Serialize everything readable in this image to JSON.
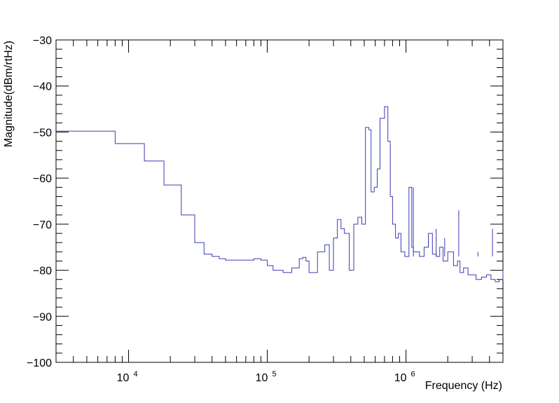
{
  "chart_data": {
    "type": "line",
    "title": "",
    "xlabel": "Frequency (Hz)",
    "ylabel": "Magnitude(dBm/rtHz)",
    "x_scale": "log",
    "xlim": [
      3000,
      5000000
    ],
    "ylim": [
      -100,
      -30
    ],
    "grid": false,
    "legend": "none",
    "line_color": "#3b3bb3",
    "x_tick_labels": [
      {
        "value": 10000,
        "base": "10",
        "exp": "4"
      },
      {
        "value": 100000,
        "base": "10",
        "exp": "5"
      },
      {
        "value": 1000000,
        "base": "10",
        "exp": "6"
      }
    ],
    "y_tick_labels": [
      "−30",
      "−40",
      "−50",
      "−60",
      "−70",
      "−80",
      "−90",
      "−100"
    ],
    "y_tick_values": [
      -30,
      -40,
      -50,
      -60,
      -70,
      -80,
      -90,
      -100
    ],
    "series": [
      {
        "x": [
          3000,
          8000,
          13000,
          18000,
          24000,
          30000,
          35000,
          40000,
          45000,
          50000,
          60000,
          80000,
          90000,
          100000,
          110000,
          130000,
          150000,
          170000,
          180000,
          190000,
          200000,
          230000,
          260000,
          280000,
          300000,
          320000,
          340000,
          360000,
          390000,
          420000,
          450000,
          480000,
          510000,
          540000,
          560000,
          590000,
          620000,
          650000,
          700000,
          740000,
          770000,
          800000,
          840000,
          880000,
          920000,
          980000,
          1050000,
          1100000,
          1130000,
          1170000,
          1250000,
          1350000,
          1450000,
          1550000,
          1650000,
          1750000,
          1850000,
          2000000,
          2200000,
          2350000,
          2450000,
          2600000,
          2800000,
          3000000,
          3200000,
          3500000,
          3800000,
          4100000,
          4400000,
          4700000,
          5000000
        ],
        "y": [
          -49.8,
          -52.5,
          -56.3,
          -61.5,
          -68,
          -74,
          -76.5,
          -77,
          -77.5,
          -77.8,
          -77.8,
          -77.5,
          -77.8,
          -79,
          -80,
          -80.5,
          -79.5,
          -77.5,
          -77.2,
          -78,
          -80.5,
          -76,
          -74.5,
          -80,
          -73,
          -69,
          -71,
          -72,
          -80,
          -70,
          -68.5,
          -70,
          -49,
          -49.5,
          -63,
          -62,
          -58,
          -47,
          -44.5,
          -52,
          -64,
          -70,
          -73,
          -72,
          -76,
          -77,
          -62,
          -75,
          -76,
          -76,
          -77,
          -75,
          -72,
          -76.5,
          -77,
          -75,
          -78,
          -76,
          -79,
          -78,
          -80.5,
          -79.5,
          -81,
          -81,
          -82,
          -81.5,
          -81,
          -82,
          -82.5,
          -82,
          -80
        ]
      }
    ],
    "spikes": [
      {
        "x": 1130000,
        "y": -62
      },
      {
        "x": 1650000,
        "y": -71
      },
      {
        "x": 1900000,
        "y": -73
      },
      {
        "x": 2400000,
        "y": -67
      },
      {
        "x": 3300000,
        "y": -76
      },
      {
        "x": 4200000,
        "y": -71
      }
    ]
  }
}
